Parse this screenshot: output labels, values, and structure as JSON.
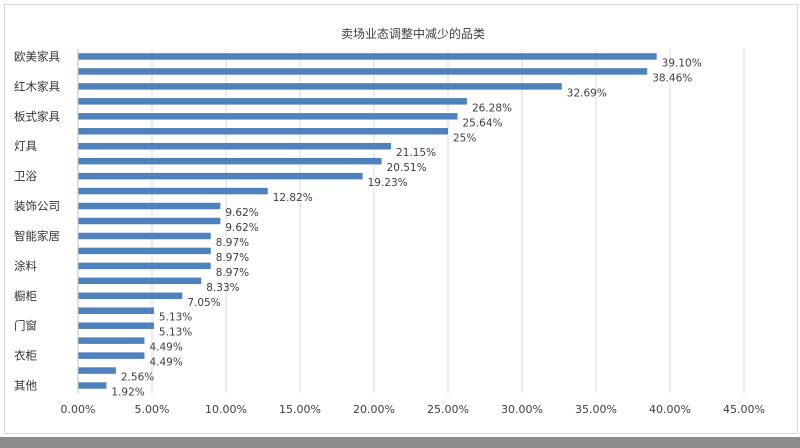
{
  "chart_data": {
    "type": "bar",
    "orientation": "horizontal",
    "title": "卖场业态调整中减少的品类",
    "bar_color": "#4f81bd",
    "grid": true,
    "xlim": [
      0,
      45
    ],
    "x_ticks": [
      "0.00%",
      "5.00%",
      "10.00%",
      "15.00%",
      "20.00%",
      "25.00%",
      "30.00%",
      "35.00%",
      "40.00%",
      "45.00%"
    ],
    "bars": [
      {
        "label": "欧美家具",
        "value": 39.1,
        "text": "39.10%"
      },
      {
        "label": "",
        "value": 38.46,
        "text": "38.46%"
      },
      {
        "label": "红木家具",
        "value": 32.69,
        "text": "32.69%"
      },
      {
        "label": "",
        "value": 26.28,
        "text": "26.28%"
      },
      {
        "label": "板式家具",
        "value": 25.64,
        "text": "25.64%"
      },
      {
        "label": "",
        "value": 25.0,
        "text": "25%"
      },
      {
        "label": "灯具",
        "value": 21.15,
        "text": "21.15%"
      },
      {
        "label": "",
        "value": 20.51,
        "text": "20.51%"
      },
      {
        "label": "卫浴",
        "value": 19.23,
        "text": "19.23%"
      },
      {
        "label": "",
        "value": 12.82,
        "text": "12.82%"
      },
      {
        "label": "装饰公司",
        "value": 9.62,
        "text": "9.62%"
      },
      {
        "label": "",
        "value": 9.62,
        "text": "9.62%"
      },
      {
        "label": "智能家居",
        "value": 8.97,
        "text": "8.97%"
      },
      {
        "label": "",
        "value": 8.97,
        "text": "8.97%"
      },
      {
        "label": "涂料",
        "value": 8.97,
        "text": "8.97%"
      },
      {
        "label": "",
        "value": 8.33,
        "text": "8.33%"
      },
      {
        "label": "橱柜",
        "value": 7.05,
        "text": "7.05%"
      },
      {
        "label": "",
        "value": 5.13,
        "text": "5.13%"
      },
      {
        "label": "门窗",
        "value": 5.13,
        "text": "5.13%"
      },
      {
        "label": "",
        "value": 4.49,
        "text": "4.49%"
      },
      {
        "label": "衣柜",
        "value": 4.49,
        "text": "4.49%"
      },
      {
        "label": "",
        "value": 2.56,
        "text": "2.56%"
      },
      {
        "label": "其他",
        "value": 1.92,
        "text": "1.92%"
      }
    ]
  }
}
